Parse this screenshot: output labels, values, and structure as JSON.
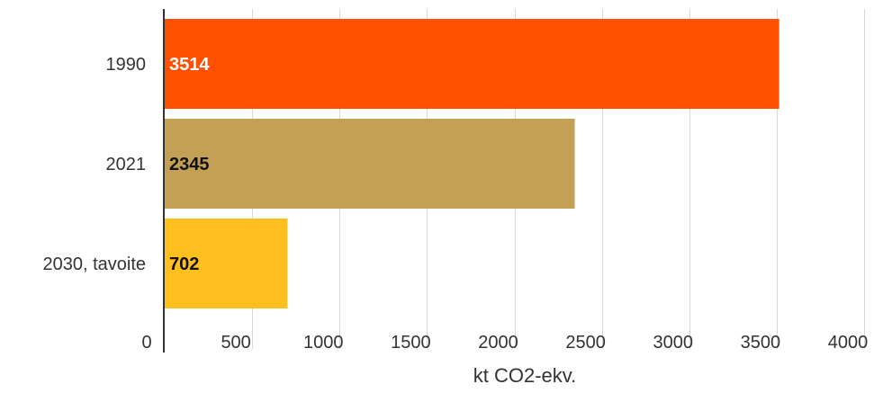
{
  "chart_data": {
    "type": "bar",
    "orientation": "horizontal",
    "categories": [
      "1990",
      "2021",
      "2030, tavoite"
    ],
    "values": [
      3514,
      2345,
      702
    ],
    "data_labels": [
      "3514",
      "2345",
      "702"
    ],
    "bar_colors": [
      "#ff5000",
      "#c3a053",
      "#ffc01f"
    ],
    "label_colors": [
      "#ffffff",
      "#111111",
      "#111111"
    ],
    "title": "",
    "xlabel": "kt CO2-ekv.",
    "ylabel": "",
    "xlim": [
      0,
      4000
    ],
    "ticks": [
      0,
      500,
      1000,
      1500,
      2000,
      2500,
      3000,
      3500,
      4000
    ],
    "tick_labels": [
      "0",
      "500",
      "1000",
      "1500",
      "2000",
      "2500",
      "3000",
      "3500",
      "4000"
    ],
    "grid": true,
    "legend": "none"
  }
}
